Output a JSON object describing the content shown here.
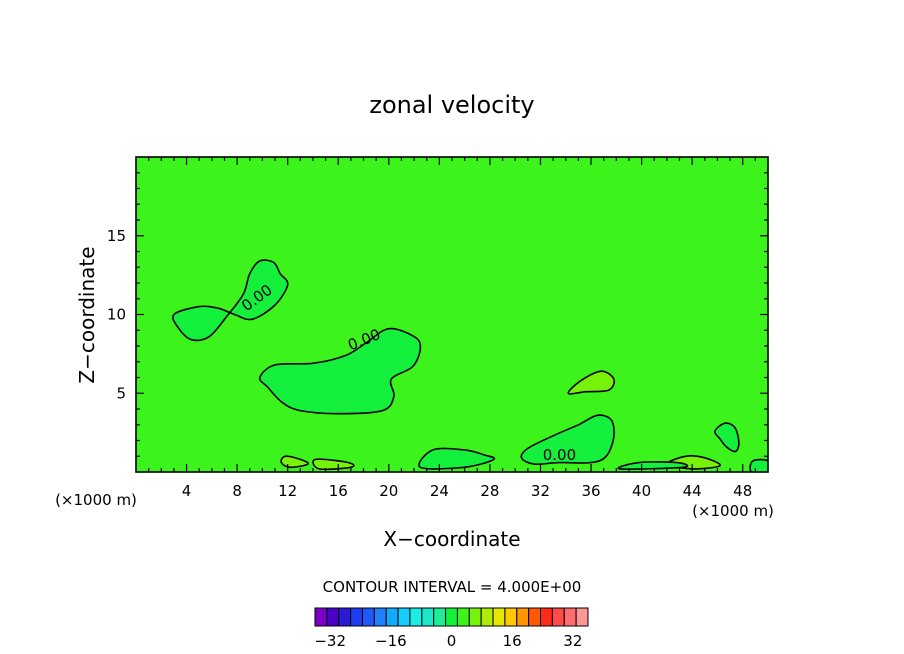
{
  "chart_data": {
    "type": "contour",
    "title": "zonal velocity",
    "xlabel": "X−coordinate",
    "ylabel": "Z−coordinate",
    "x_unit_left": "(×1000 m)",
    "x_unit_right": "(×1000 m)",
    "xlim": [
      0,
      50
    ],
    "ylim": [
      0,
      20
    ],
    "x_ticks": [
      4,
      8,
      12,
      16,
      20,
      24,
      28,
      32,
      36,
      40,
      44,
      48
    ],
    "y_ticks": [
      5,
      10,
      15
    ],
    "background_value": 0,
    "contour_interval_label": "CONTOUR INTERVAL = 4.000E+00",
    "contour_labels": [
      "0.00",
      "0.00",
      "0.00"
    ],
    "regions": [
      {
        "name": "upper-left-negative",
        "value": -2,
        "points": [
          [
            3,
            10
          ],
          [
            3.4,
            9.1
          ],
          [
            4.4,
            8.4
          ],
          [
            5.8,
            8.6
          ],
          [
            7.2,
            9.9
          ],
          [
            8.5,
            11.3
          ],
          [
            9,
            12.6
          ],
          [
            9.8,
            13.4
          ],
          [
            10.9,
            13.3
          ],
          [
            11.4,
            12.6
          ],
          [
            12,
            11.9
          ],
          [
            11,
            10.6
          ],
          [
            9.2,
            9.7
          ],
          [
            7.8,
            10
          ],
          [
            6.5,
            10.4
          ],
          [
            5,
            10.5
          ]
        ]
      },
      {
        "name": "center-negative",
        "value": -2,
        "points": [
          [
            9.8,
            6
          ],
          [
            10.4,
            5.4
          ],
          [
            11.6,
            4.4
          ],
          [
            13,
            3.9
          ],
          [
            16,
            3.7
          ],
          [
            19.5,
            3.9
          ],
          [
            20.4,
            4.8
          ],
          [
            20.2,
            5.9
          ],
          [
            21.9,
            6.7
          ],
          [
            22.5,
            7.9
          ],
          [
            22,
            8.6
          ],
          [
            20,
            9.1
          ],
          [
            18.2,
            8.2
          ],
          [
            16.6,
            7.4
          ],
          [
            14,
            6.9
          ],
          [
            11,
            6.8
          ]
        ]
      },
      {
        "name": "lower-right-negative",
        "value": -2,
        "points": [
          [
            31,
            1.5
          ],
          [
            33,
            2.3
          ],
          [
            35,
            3
          ],
          [
            36.5,
            3.6
          ],
          [
            37.6,
            3.3
          ],
          [
            37.8,
            2.2
          ],
          [
            37.2,
            1
          ],
          [
            36,
            0.6
          ],
          [
            33.5,
            0.6
          ],
          [
            31.5,
            0.5
          ],
          [
            30.5,
            0.9
          ]
        ]
      },
      {
        "name": "right-small-negative",
        "value": -2,
        "points": [
          [
            45.8,
            2.6
          ],
          [
            46.6,
            3.1
          ],
          [
            47.4,
            2.8
          ],
          [
            47.7,
            1.8
          ],
          [
            47.4,
            1.3
          ],
          [
            46.7,
            1.6
          ],
          [
            46.2,
            2.1
          ]
        ]
      },
      {
        "name": "mid-right-positive",
        "value": 2,
        "points": [
          [
            34.2,
            5
          ],
          [
            35.2,
            5.8
          ],
          [
            36.8,
            6.4
          ],
          [
            37.8,
            5.9
          ],
          [
            37.4,
            5.2
          ],
          [
            35.6,
            5.1
          ]
        ]
      },
      {
        "name": "surface-positive-a",
        "value": 2,
        "points": [
          [
            11.8,
            1
          ],
          [
            13,
            0.8
          ],
          [
            13.6,
            0.5
          ],
          [
            12.2,
            0.3
          ],
          [
            11.5,
            0.6
          ]
        ]
      },
      {
        "name": "surface-positive-b",
        "value": 2,
        "points": [
          [
            14.2,
            0.8
          ],
          [
            16.8,
            0.6
          ],
          [
            17,
            0.3
          ],
          [
            14.5,
            0.2
          ]
        ]
      },
      {
        "name": "surface-positive-c",
        "value": 2,
        "points": [
          [
            42,
            0.5
          ],
          [
            43.5,
            1
          ],
          [
            45,
            0.9
          ],
          [
            46.2,
            0.4
          ],
          [
            44,
            0.2
          ]
        ]
      },
      {
        "name": "surface-negative-d",
        "value": -2,
        "points": [
          [
            22.5,
            0.3
          ],
          [
            23.5,
            1.4
          ],
          [
            26,
            1.4
          ],
          [
            27.5,
            1.1
          ],
          [
            28.3,
            0.8
          ],
          [
            26,
            0.3
          ]
        ]
      },
      {
        "name": "surface-negative-e",
        "value": -2,
        "points": [
          [
            38.3,
            0.2
          ],
          [
            39.8,
            0.6
          ],
          [
            42.8,
            0.6
          ],
          [
            43.3,
            0.3
          ]
        ]
      },
      {
        "name": "surface-negative-f",
        "value": -2,
        "points": [
          [
            48.7,
            0
          ],
          [
            48.8,
            0.7
          ],
          [
            50,
            0.7
          ],
          [
            50,
            0
          ]
        ]
      }
    ],
    "colorbar": {
      "levels": [
        -36,
        -32,
        -28,
        -24,
        -20,
        -16,
        -12,
        -8,
        -4,
        0,
        4,
        8,
        12,
        16,
        20,
        24,
        28,
        32,
        36
      ],
      "tick_labels": [
        "−32",
        "−16",
        "0",
        "16",
        "32"
      ],
      "tick_values": [
        -32,
        -16,
        0,
        16,
        32
      ],
      "colors": [
        "#7a00c8",
        "#4b00c8",
        "#2a1ad6",
        "#1e3cf0",
        "#1e5af8",
        "#1e82ff",
        "#10aaff",
        "#14cdfa",
        "#18f0e6",
        "#1ee6c8",
        "#20eb96",
        "#14f03c",
        "#3cf41c",
        "#78f20a",
        "#b0ec0a",
        "#e6e600",
        "#ffc800",
        "#ff9600",
        "#ff5a00",
        "#ff2a1a",
        "#ff4a4a",
        "#ff6e6e",
        "#ff9696"
      ]
    }
  }
}
